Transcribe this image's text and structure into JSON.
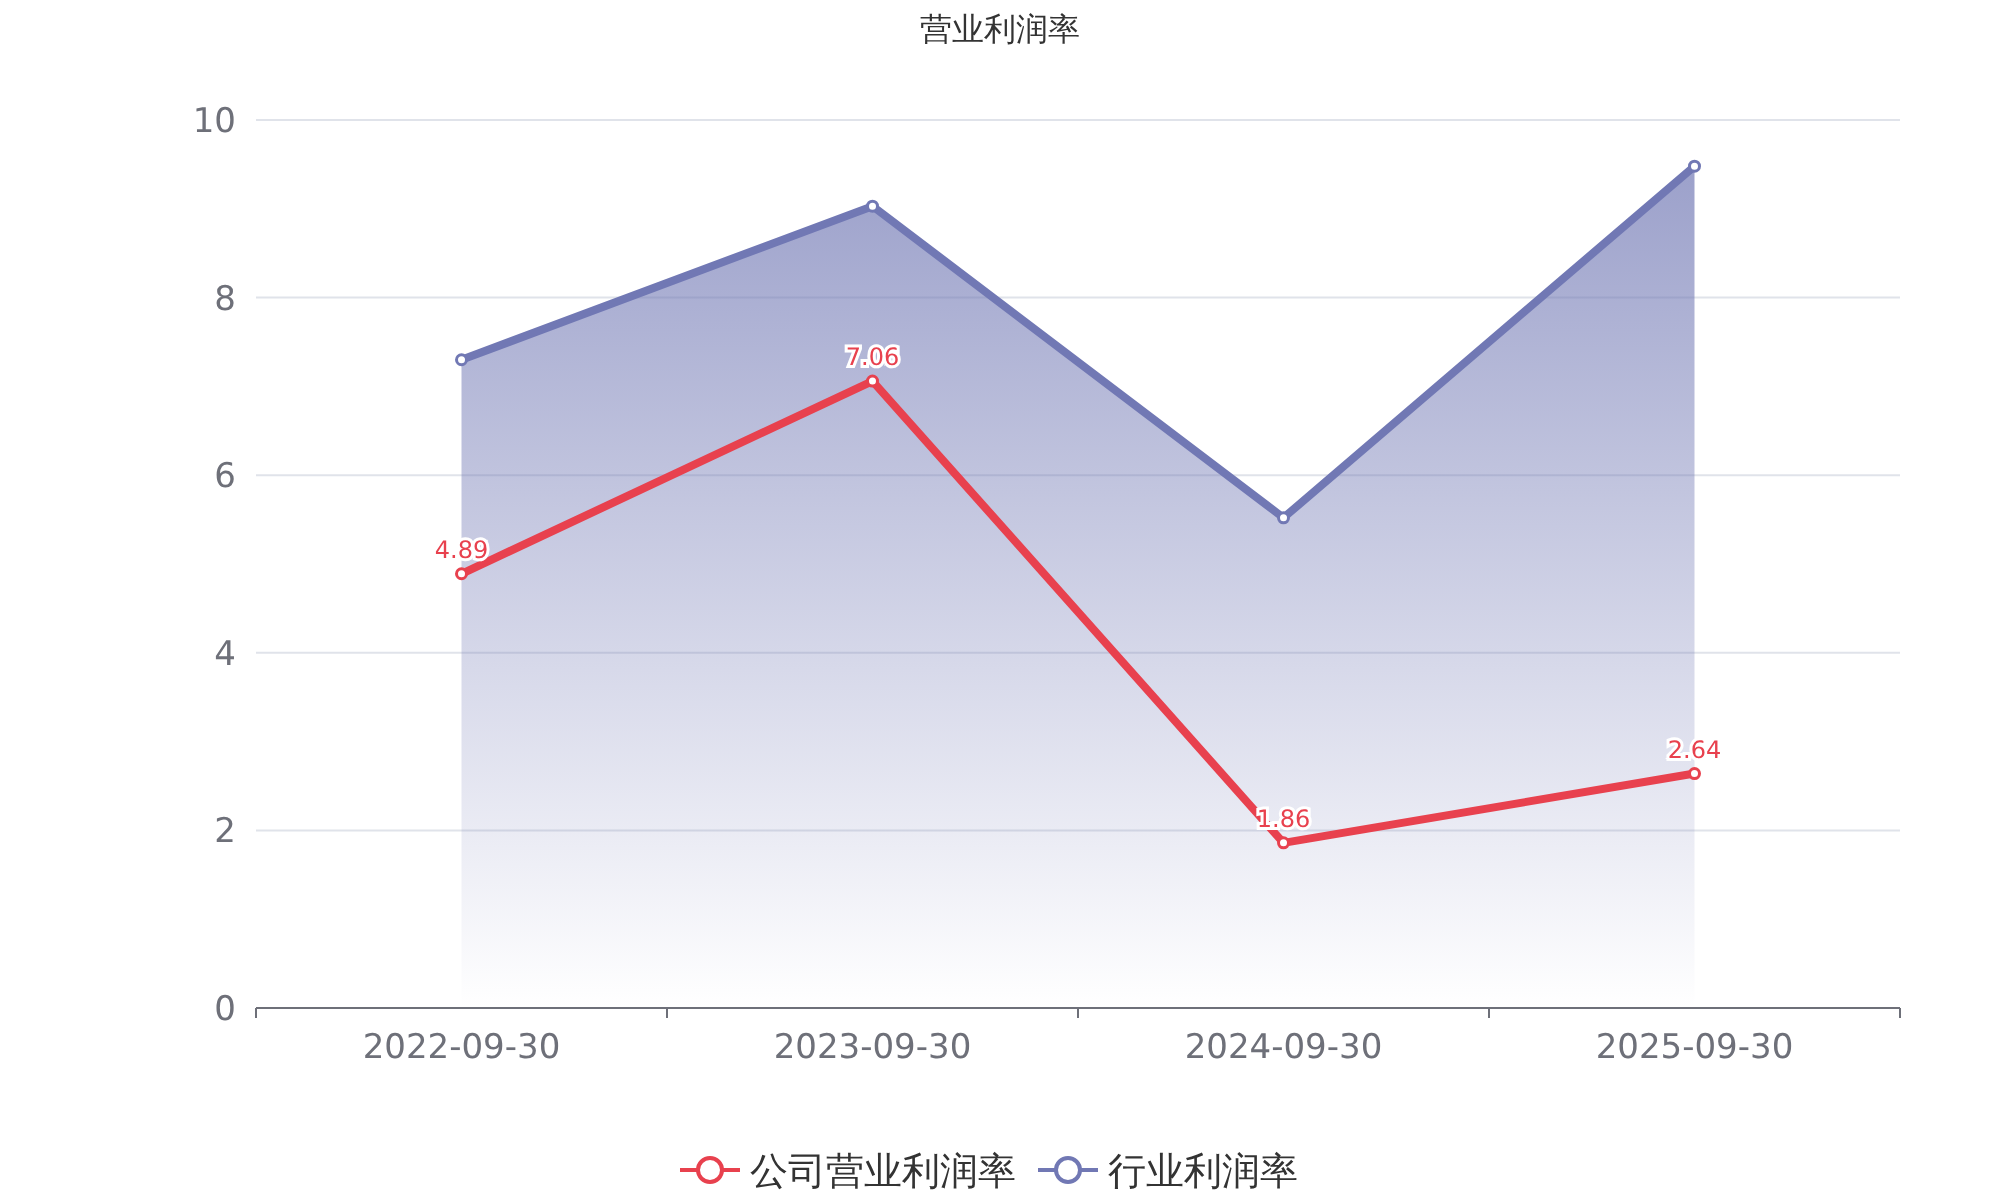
{
  "chart_data": {
    "type": "line",
    "title": "营业利润率",
    "categories": [
      "2022-09-30",
      "2023-09-30",
      "2024-09-30",
      "2025-09-30"
    ],
    "series": [
      {
        "name": "公司营业利润率",
        "type": "line",
        "color": "#e8414e",
        "values": [
          4.89,
          7.06,
          1.86,
          2.64
        ],
        "value_labels": [
          "4.89",
          "7.06",
          "1.86",
          "2.64"
        ]
      },
      {
        "name": "行业利润率",
        "type": "area",
        "color": "#7178b4",
        "values": [
          7.3,
          9.03,
          5.52,
          9.48
        ]
      }
    ],
    "ylim": [
      0,
      10
    ],
    "yticks": [
      0,
      2,
      4,
      6,
      8,
      10
    ],
    "grid": "y",
    "legend": "bottom",
    "marker": "circle"
  }
}
